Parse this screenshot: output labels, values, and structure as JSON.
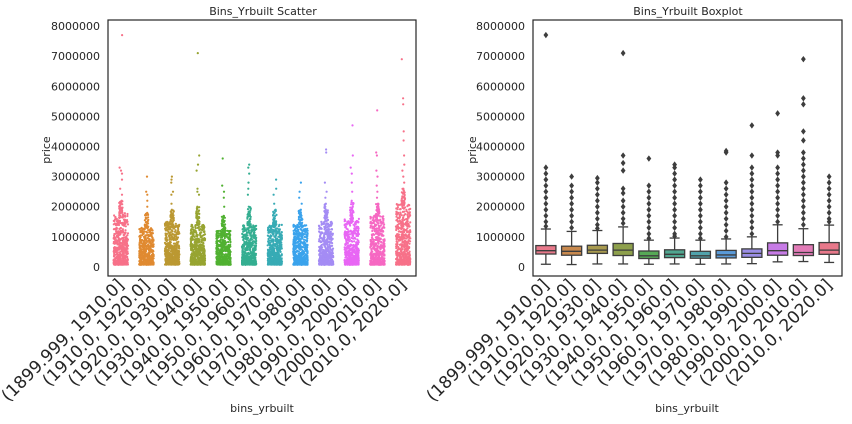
{
  "chart_data": [
    {
      "type": "scatter",
      "title": "Bins_Yrbuilt Scatter",
      "xlabel": "bins_yrbuilt",
      "ylabel": "price",
      "ylim": [
        -300000,
        8200000
      ],
      "yticks": [
        0,
        1000000,
        2000000,
        3000000,
        4000000,
        5000000,
        6000000,
        7000000,
        8000000
      ],
      "ytick_labels": [
        "0",
        "1000000",
        "2000000",
        "3000000",
        "4000000",
        "5000000",
        "6000000",
        "7000000",
        "8000000"
      ],
      "categories": [
        "(1899.999, 1910.0]",
        "(1910.0, 1920.0]",
        "(1920.0, 1930.0]",
        "(1930.0, 1940.0]",
        "(1940.0, 1950.0]",
        "(1950.0, 1960.0]",
        "(1960.0, 1970.0]",
        "(1970.0, 1980.0]",
        "(1980.0, 1990.0]",
        "(1990.0, 2000.0]",
        "(2000.0, 2010.0]",
        "(2010.0, 2020.0]"
      ],
      "colors": [
        "#f77189",
        "#e08a31",
        "#bb9832",
        "#97a431",
        "#50b131",
        "#34ae91",
        "#37abb5",
        "#3ba3ec",
        "#a48cf4",
        "#e866f4",
        "#f668c2",
        "#f77189"
      ],
      "series": [
        {
          "name": "(1899.999, 1910.0]",
          "dense_max": 1800000,
          "outliers": [
            7700000,
            3300000,
            3200000,
            3100000,
            2900000,
            2600000,
            2400000,
            2200000
          ]
        },
        {
          "name": "(1910.0, 1920.0]",
          "dense_max": 1300000,
          "outliers": [
            3000000,
            2500000,
            2400000,
            2200000,
            2000000,
            1800000
          ]
        },
        {
          "name": "(1920.0, 1930.0]",
          "dense_max": 1500000,
          "outliers": [
            3000000,
            2900000,
            2800000,
            2500000,
            2400000,
            2100000,
            1900000
          ]
        },
        {
          "name": "(1930.0, 1940.0]",
          "dense_max": 1400000,
          "outliers": [
            7100000,
            3700000,
            3400000,
            3200000,
            2600000,
            2500000,
            2400000,
            2000000
          ]
        },
        {
          "name": "(1940.0, 1950.0]",
          "dense_max": 1200000,
          "outliers": [
            3600000,
            2700000,
            2500000,
            2300000,
            2000000,
            1700000
          ]
        },
        {
          "name": "(1950.0, 1960.0]",
          "dense_max": 1400000,
          "outliers": [
            3400000,
            3300000,
            3100000,
            2800000,
            2600000,
            2400000,
            2000000
          ]
        },
        {
          "name": "(1960.0, 1970.0]",
          "dense_max": 1400000,
          "outliers": [
            2900000,
            2600000,
            2400000,
            2100000,
            1900000
          ]
        },
        {
          "name": "(1970.0, 1980.0]",
          "dense_max": 1400000,
          "outliers": [
            2800000,
            2500000,
            2300000,
            2100000,
            1900000
          ]
        },
        {
          "name": "(1980.0, 1990.0]",
          "dense_max": 1500000,
          "outliers": [
            3900000,
            3800000,
            2800000,
            2500000,
            2300000,
            2100000
          ]
        },
        {
          "name": "(1990.0, 2000.0]",
          "dense_max": 1600000,
          "outliers": [
            4700000,
            3700000,
            3300000,
            3100000,
            2800000,
            2500000,
            2200000
          ]
        },
        {
          "name": "(2000.0, 2010.0]",
          "dense_max": 1700000,
          "outliers": [
            5200000,
            3800000,
            3700000,
            3200000,
            3000000,
            2700000,
            2500000,
            2300000,
            2100000
          ]
        },
        {
          "name": "(2010.0, 2020.0]",
          "dense_max": 2100000,
          "outliers": [
            6900000,
            5600000,
            5400000,
            4500000,
            4200000,
            3700000,
            3400000,
            3200000,
            3000000,
            2800000,
            2600000
          ]
        }
      ]
    },
    {
      "type": "box",
      "title": "Bins_Yrbuilt Boxplot",
      "xlabel": "bins_yrbuilt",
      "ylabel": "price",
      "ylim": [
        -300000,
        8200000
      ],
      "yticks": [
        0,
        1000000,
        2000000,
        3000000,
        4000000,
        5000000,
        6000000,
        7000000,
        8000000
      ],
      "ytick_labels": [
        "0",
        "1000000",
        "2000000",
        "3000000",
        "4000000",
        "5000000",
        "6000000",
        "7000000",
        "8000000"
      ],
      "categories": [
        "(1899.999, 1910.0]",
        "(1910.0, 1920.0]",
        "(1920.0, 1930.0]",
        "(1930.0, 1940.0]",
        "(1940.0, 1950.0]",
        "(1950.0, 1960.0]",
        "(1960.0, 1970.0]",
        "(1970.0, 1980.0]",
        "(1980.0, 1990.0]",
        "(1990.0, 2000.0]",
        "(2000.0, 2010.0]",
        "(2010.0, 2020.0]"
      ],
      "colors": [
        "#e8788a",
        "#c8894e",
        "#a89a4f",
        "#8ea04c",
        "#56a956",
        "#50a58f",
        "#51a3ac",
        "#5a9ad8",
        "#9b8ee6",
        "#c77be6",
        "#e27bb7",
        "#e8788a"
      ],
      "boxes": [
        {
          "whislo": 90000,
          "q1": 430000,
          "med": 540000,
          "q3": 710000,
          "whishi": 1260000,
          "fliers": [
            7700000,
            3300000,
            3100000,
            2900000,
            2700000,
            2500000,
            2300000,
            2100000,
            1900000,
            1700000,
            1500000,
            1350000
          ]
        },
        {
          "whislo": 80000,
          "q1": 390000,
          "med": 520000,
          "q3": 690000,
          "whishi": 1180000,
          "fliers": [
            3000000,
            2700000,
            2500000,
            2300000,
            2100000,
            1900000,
            1700000,
            1500000,
            1300000
          ]
        },
        {
          "whislo": 100000,
          "q1": 450000,
          "med": 560000,
          "q3": 720000,
          "whishi": 1210000,
          "fliers": [
            2950000,
            2800000,
            2600000,
            2400000,
            2200000,
            2000000,
            1800000,
            1600000,
            1400000,
            1280000
          ]
        },
        {
          "whislo": 100000,
          "q1": 380000,
          "med": 560000,
          "q3": 780000,
          "whishi": 1330000,
          "fliers": [
            7100000,
            3700000,
            3450000,
            3200000,
            2600000,
            2450000,
            2200000,
            2000000,
            1800000,
            1600000,
            1450000
          ]
        },
        {
          "whislo": 90000,
          "q1": 280000,
          "med": 370000,
          "q3": 530000,
          "whishi": 890000,
          "fliers": [
            3600000,
            2700000,
            2500000,
            2300000,
            2100000,
            1900000,
            1700000,
            1500000,
            1300000,
            1100000,
            950000
          ]
        },
        {
          "whislo": 100000,
          "q1": 310000,
          "med": 420000,
          "q3": 570000,
          "whishi": 960000,
          "fliers": [
            3400000,
            3300000,
            3100000,
            2900000,
            2700000,
            2500000,
            2300000,
            2100000,
            1900000,
            1700000,
            1500000,
            1300000,
            1100000,
            1020000
          ]
        },
        {
          "whislo": 90000,
          "q1": 290000,
          "med": 370000,
          "q3": 520000,
          "whishi": 890000,
          "fliers": [
            2900000,
            2700000,
            2500000,
            2300000,
            2100000,
            1900000,
            1700000,
            1500000,
            1300000,
            1100000,
            950000
          ]
        },
        {
          "whislo": 100000,
          "q1": 300000,
          "med": 400000,
          "q3": 550000,
          "whishi": 930000,
          "fliers": [
            3850000,
            3800000,
            2800000,
            2600000,
            2400000,
            2200000,
            2000000,
            1800000,
            1600000,
            1400000,
            1200000,
            1000000
          ]
        },
        {
          "whislo": 110000,
          "q1": 320000,
          "med": 450000,
          "q3": 600000,
          "whishi": 1000000,
          "fliers": [
            4700000,
            3700000,
            3300000,
            3100000,
            2900000,
            2700000,
            2500000,
            2300000,
            2100000,
            1900000,
            1700000,
            1500000,
            1300000,
            1100000
          ]
        },
        {
          "whislo": 170000,
          "q1": 390000,
          "med": 540000,
          "q3": 800000,
          "whishi": 1400000,
          "fliers": [
            5100000,
            3800000,
            3700000,
            3300000,
            3100000,
            2900000,
            2700000,
            2500000,
            2300000,
            2100000,
            1900000,
            1700000,
            1500000
          ]
        },
        {
          "whislo": 180000,
          "q1": 380000,
          "med": 480000,
          "q3": 740000,
          "whishi": 1270000,
          "fliers": [
            6900000,
            5600000,
            5400000,
            4500000,
            4200000,
            3800000,
            3600000,
            3400000,
            3200000,
            3000000,
            2800000,
            2600000,
            2400000,
            2200000,
            2000000,
            1800000,
            1600000,
            1400000
          ]
        },
        {
          "whislo": 150000,
          "q1": 420000,
          "med": 560000,
          "q3": 810000,
          "whishi": 1390000,
          "fliers": [
            3000000,
            2800000,
            2600000,
            2400000,
            2200000,
            2000000,
            1800000,
            1600000,
            1500000
          ]
        }
      ]
    }
  ]
}
